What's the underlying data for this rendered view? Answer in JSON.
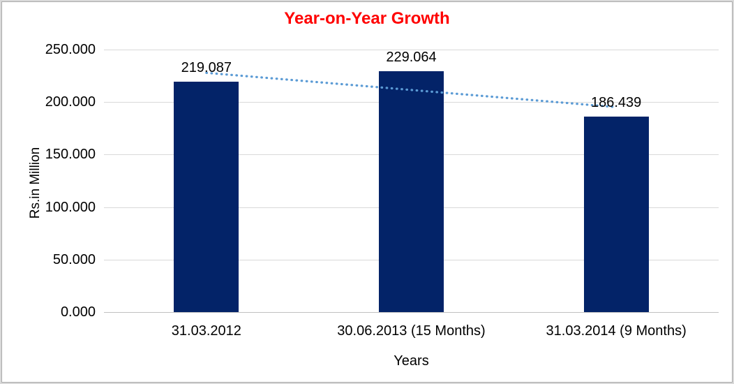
{
  "chart_data": {
    "type": "bar",
    "title": "Year-on-Year Growth",
    "title_color": "#ff0000",
    "xlabel": "Years",
    "ylabel": "Rs.in Million",
    "categories": [
      "31.03.2012",
      "30.06.2013 (15 Months)",
      "31.03.2014 (9 Months)"
    ],
    "values": [
      219.087,
      229.064,
      186.439
    ],
    "data_labels": [
      "219.087",
      "229.064",
      "186.439"
    ],
    "ylim": [
      0,
      250
    ],
    "ytick_step": 50,
    "ytick_labels": [
      "0.000",
      "50.000",
      "100.000",
      "150.000",
      "200.000",
      "250.000"
    ],
    "bar_color": "#032368",
    "gridline_color": "#d9d9d9",
    "gridlines": true,
    "legend": "none",
    "trendline": {
      "kind": "linear",
      "style": "dotted",
      "color": "#5b9bd5"
    }
  }
}
